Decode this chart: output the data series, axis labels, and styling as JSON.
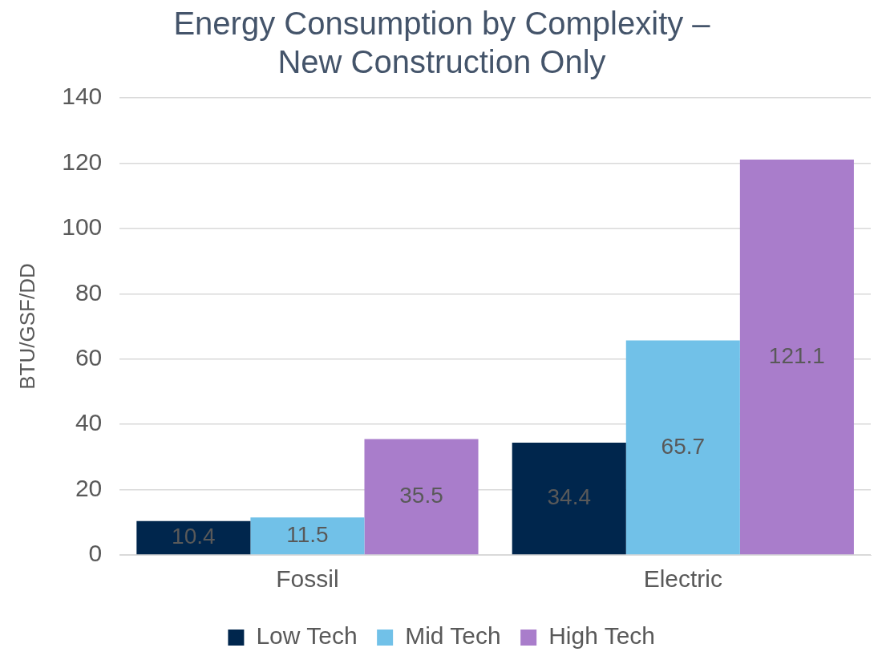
{
  "chart_data": {
    "type": "bar",
    "title": [
      "Energy Consumption by Complexity –",
      "New Construction Only"
    ],
    "ylabel": "BTU/GSF/DD",
    "categories": [
      "Fossil",
      "Electric"
    ],
    "series": [
      {
        "name": "Low Tech",
        "color": "#00264d",
        "values": [
          10.4,
          34.4
        ]
      },
      {
        "name": "Mid Tech",
        "color": "#71c1e8",
        "values": [
          11.5,
          65.7
        ]
      },
      {
        "name": "High Tech",
        "color": "#a97dcb",
        "values": [
          35.5,
          121.1
        ]
      }
    ],
    "ylim": [
      0,
      140
    ],
    "yticks": [
      0,
      20,
      40,
      60,
      80,
      100,
      120,
      140
    ],
    "grid": "y",
    "legend": "bottom",
    "data_labels": true
  }
}
